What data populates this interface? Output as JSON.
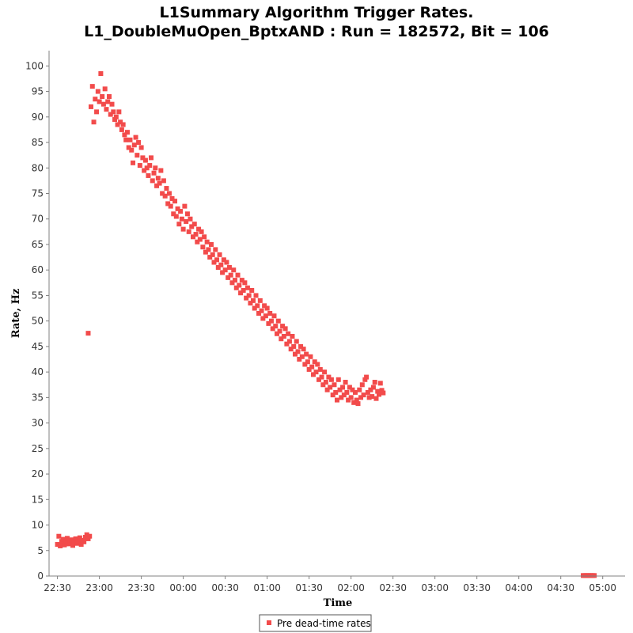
{
  "chart_data": {
    "type": "scatter",
    "title": [
      "L1Summary Algorithm Trigger Rates.",
      "L1_DoubleMuOpen_BptxAND : Run = 182572, Bit = 106"
    ],
    "xlabel": "Time",
    "ylabel": "Rate, Hz",
    "x_unit": "minutes from 22:30",
    "xlim": [
      -6,
      406
    ],
    "ylim": [
      0,
      103
    ],
    "xticks": [
      "22:30",
      "23:00",
      "23:30",
      "00:00",
      "00:30",
      "01:00",
      "01:30",
      "02:00",
      "02:30",
      "03:00",
      "03:30",
      "04:00",
      "04:30",
      "05:00"
    ],
    "xtick_values": [
      0,
      30,
      60,
      90,
      120,
      150,
      180,
      210,
      240,
      270,
      300,
      330,
      360,
      390
    ],
    "yticks": [
      0,
      5,
      10,
      15,
      20,
      25,
      30,
      35,
      40,
      45,
      50,
      55,
      60,
      65,
      70,
      75,
      80,
      85,
      90,
      95,
      100
    ],
    "grid": false,
    "legend_position": "bottom-center",
    "series": [
      {
        "name": "Pre dead-time rates",
        "color": "#f24b4b",
        "marker": "square",
        "points": [
          [
            0,
            6.2
          ],
          [
            1,
            7.8
          ],
          [
            2,
            5.9
          ],
          [
            3,
            6.8
          ],
          [
            4,
            7.2
          ],
          [
            5,
            6.1
          ],
          [
            6,
            6.9
          ],
          [
            7,
            7.4
          ],
          [
            8,
            6.3
          ],
          [
            9,
            6.6
          ],
          [
            10,
            7.1
          ],
          [
            11,
            6.0
          ],
          [
            12,
            6.8
          ],
          [
            13,
            7.3
          ],
          [
            14,
            6.4
          ],
          [
            15,
            6.9
          ],
          [
            16,
            7.5
          ],
          [
            17,
            6.2
          ],
          [
            18,
            7.0
          ],
          [
            19,
            6.7
          ],
          [
            20,
            7.6
          ],
          [
            21,
            8.1
          ],
          [
            22,
            7.3
          ],
          [
            23,
            7.8
          ],
          [
            22,
            47.6
          ],
          [
            24,
            92.0
          ],
          [
            25,
            96.0
          ],
          [
            26,
            89.0
          ],
          [
            27,
            93.5
          ],
          [
            28,
            91.0
          ],
          [
            29,
            95.0
          ],
          [
            30,
            93.0
          ],
          [
            31,
            98.5
          ],
          [
            32,
            94.0
          ],
          [
            33,
            92.5
          ],
          [
            34,
            95.5
          ],
          [
            35,
            91.5
          ],
          [
            36,
            93.0
          ],
          [
            37,
            94.0
          ],
          [
            38,
            90.5
          ],
          [
            39,
            92.5
          ],
          [
            40,
            91.0
          ],
          [
            41,
            89.5
          ],
          [
            42,
            90.0
          ],
          [
            43,
            88.5
          ],
          [
            44,
            91.0
          ],
          [
            45,
            89.0
          ],
          [
            46,
            87.5
          ],
          [
            47,
            88.5
          ],
          [
            48,
            86.5
          ],
          [
            49,
            85.5
          ],
          [
            50,
            87.0
          ],
          [
            51,
            84.0
          ],
          [
            52,
            85.5
          ],
          [
            53,
            83.5
          ],
          [
            54,
            81.0
          ],
          [
            55,
            84.5
          ],
          [
            56,
            86.0
          ],
          [
            57,
            82.5
          ],
          [
            58,
            85.0
          ],
          [
            59,
            80.5
          ],
          [
            60,
            84.0
          ],
          [
            61,
            82.0
          ],
          [
            62,
            79.5
          ],
          [
            63,
            81.5
          ],
          [
            64,
            80.0
          ],
          [
            65,
            78.5
          ],
          [
            66,
            80.5
          ],
          [
            67,
            82.0
          ],
          [
            68,
            77.5
          ],
          [
            69,
            79.0
          ],
          [
            70,
            80.0
          ],
          [
            71,
            76.5
          ],
          [
            72,
            78.0
          ],
          [
            73,
            77.0
          ],
          [
            74,
            79.5
          ],
          [
            75,
            75.0
          ],
          [
            76,
            77.5
          ],
          [
            77,
            74.5
          ],
          [
            78,
            76.0
          ],
          [
            79,
            73.0
          ],
          [
            80,
            75.0
          ],
          [
            81,
            72.5
          ],
          [
            82,
            74.0
          ],
          [
            83,
            71.0
          ],
          [
            84,
            73.5
          ],
          [
            85,
            70.5
          ],
          [
            86,
            72.0
          ],
          [
            87,
            69.0
          ],
          [
            88,
            71.5
          ],
          [
            89,
            70.0
          ],
          [
            90,
            68.0
          ],
          [
            91,
            72.5
          ],
          [
            92,
            69.5
          ],
          [
            93,
            71.0
          ],
          [
            94,
            67.5
          ],
          [
            95,
            70.0
          ],
          [
            96,
            68.5
          ],
          [
            97,
            66.5
          ],
          [
            98,
            69.0
          ],
          [
            99,
            67.0
          ],
          [
            100,
            65.5
          ],
          [
            101,
            68.0
          ],
          [
            102,
            66.0
          ],
          [
            103,
            67.5
          ],
          [
            104,
            64.5
          ],
          [
            105,
            66.5
          ],
          [
            106,
            63.5
          ],
          [
            107,
            65.5
          ],
          [
            108,
            64.0
          ],
          [
            109,
            62.5
          ],
          [
            110,
            65.0
          ],
          [
            111,
            63.0
          ],
          [
            112,
            61.5
          ],
          [
            113,
            64.0
          ],
          [
            114,
            62.0
          ],
          [
            115,
            60.5
          ],
          [
            116,
            63.0
          ],
          [
            117,
            61.0
          ],
          [
            118,
            59.5
          ],
          [
            119,
            62.0
          ],
          [
            120,
            60.0
          ],
          [
            121,
            61.5
          ],
          [
            122,
            58.5
          ],
          [
            123,
            60.5
          ],
          [
            124,
            59.0
          ],
          [
            125,
            57.5
          ],
          [
            126,
            60.0
          ],
          [
            127,
            58.0
          ],
          [
            128,
            56.5
          ],
          [
            129,
            59.0
          ],
          [
            130,
            57.0
          ],
          [
            131,
            55.5
          ],
          [
            132,
            58.0
          ],
          [
            133,
            56.0
          ],
          [
            134,
            57.5
          ],
          [
            135,
            54.5
          ],
          [
            136,
            56.5
          ],
          [
            137,
            55.0
          ],
          [
            138,
            53.5
          ],
          [
            139,
            56.0
          ],
          [
            140,
            54.0
          ],
          [
            141,
            52.5
          ],
          [
            142,
            55.0
          ],
          [
            143,
            53.0
          ],
          [
            144,
            51.5
          ],
          [
            145,
            54.0
          ],
          [
            146,
            52.0
          ],
          [
            147,
            50.5
          ],
          [
            148,
            53.0
          ],
          [
            149,
            51.0
          ],
          [
            150,
            52.5
          ],
          [
            151,
            49.5
          ],
          [
            152,
            51.5
          ],
          [
            153,
            50.0
          ],
          [
            154,
            48.5
          ],
          [
            155,
            51.0
          ],
          [
            156,
            49.0
          ],
          [
            157,
            47.5
          ],
          [
            158,
            50.0
          ],
          [
            159,
            48.0
          ],
          [
            160,
            46.5
          ],
          [
            161,
            49.0
          ],
          [
            162,
            47.0
          ],
          [
            163,
            48.5
          ],
          [
            164,
            45.5
          ],
          [
            165,
            47.5
          ],
          [
            166,
            46.0
          ],
          [
            167,
            44.5
          ],
          [
            168,
            47.0
          ],
          [
            169,
            45.0
          ],
          [
            170,
            43.5
          ],
          [
            171,
            46.0
          ],
          [
            172,
            44.0
          ],
          [
            173,
            42.5
          ],
          [
            174,
            45.0
          ],
          [
            175,
            43.0
          ],
          [
            176,
            44.5
          ],
          [
            177,
            41.5
          ],
          [
            178,
            43.5
          ],
          [
            179,
            42.0
          ],
          [
            180,
            40.5
          ],
          [
            181,
            43.0
          ],
          [
            182,
            41.0
          ],
          [
            183,
            39.5
          ],
          [
            184,
            42.0
          ],
          [
            185,
            40.0
          ],
          [
            186,
            41.5
          ],
          [
            187,
            38.5
          ],
          [
            188,
            40.5
          ],
          [
            189,
            39.0
          ],
          [
            190,
            37.5
          ],
          [
            191,
            40.0
          ],
          [
            192,
            38.0
          ],
          [
            193,
            36.5
          ],
          [
            194,
            39.0
          ],
          [
            195,
            37.0
          ],
          [
            196,
            38.5
          ],
          [
            197,
            35.5
          ],
          [
            198,
            37.5
          ],
          [
            199,
            36.0
          ],
          [
            200,
            34.5
          ],
          [
            201,
            38.5
          ],
          [
            202,
            36.5
          ],
          [
            203,
            35.0
          ],
          [
            204,
            37.0
          ],
          [
            205,
            35.5
          ],
          [
            206,
            38.0
          ],
          [
            207,
            36.0
          ],
          [
            208,
            34.5
          ],
          [
            209,
            37.0
          ],
          [
            210,
            35.0
          ],
          [
            211,
            36.5
          ],
          [
            212,
            34.0
          ],
          [
            213,
            36.0
          ],
          [
            214,
            34.5
          ],
          [
            215,
            33.8
          ],
          [
            216,
            36.5
          ],
          [
            217,
            35.0
          ],
          [
            218,
            37.5
          ],
          [
            219,
            35.5
          ],
          [
            220,
            38.5
          ],
          [
            221,
            39.0
          ],
          [
            222,
            36.0
          ],
          [
            223,
            35.0
          ],
          [
            224,
            36.5
          ],
          [
            225,
            35.2
          ],
          [
            226,
            37.0
          ],
          [
            227,
            38.0
          ],
          [
            228,
            34.8
          ],
          [
            229,
            36.2
          ],
          [
            230,
            35.6
          ],
          [
            231,
            37.8
          ],
          [
            232,
            36.4
          ],
          [
            233,
            35.9
          ],
          [
            376,
            0.1
          ],
          [
            377,
            0.1
          ],
          [
            378,
            0.1
          ],
          [
            379,
            0.1
          ],
          [
            380,
            0.1
          ],
          [
            381,
            0.1
          ],
          [
            382,
            0.1
          ],
          [
            383,
            0.1
          ],
          [
            384,
            0.1
          ]
        ]
      }
    ]
  }
}
